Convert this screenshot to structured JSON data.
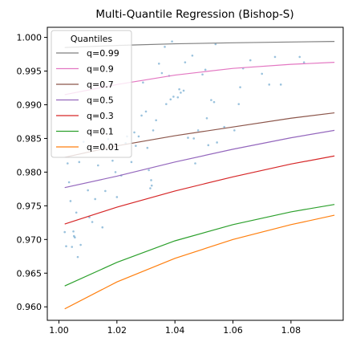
{
  "chart_data": {
    "type": "line",
    "title": "Multi-Quantile Regression (Bishop-S)",
    "xlabel": "",
    "ylabel": "",
    "xlim": [
      0.996,
      1.098
    ],
    "ylim": [
      0.958,
      1.0015
    ],
    "xticks": [
      "1.00",
      "1.02",
      "1.04",
      "1.06",
      "1.08"
    ],
    "yticks": [
      "0.960",
      "0.965",
      "0.970",
      "0.975",
      "0.980",
      "0.985",
      "0.990",
      "0.995",
      "1.000"
    ],
    "grid": false,
    "legend": {
      "title": "Quantiles",
      "placement": "top-left"
    },
    "series": [
      {
        "name": "q=0.99",
        "color": "#7f7f7f",
        "x": [
          1.002,
          1.02,
          1.04,
          1.06,
          1.08,
          1.095
        ],
        "y": [
          0.9985,
          0.9988,
          0.99905,
          0.9992,
          0.99932,
          0.9994
        ]
      },
      {
        "name": "q=0.9",
        "color": "#e377c2",
        "x": [
          1.002,
          1.02,
          1.04,
          1.06,
          1.08,
          1.095
        ],
        "y": [
          0.9915,
          0.993,
          0.9944,
          0.9954,
          0.996,
          0.9963
        ]
      },
      {
        "name": "q=0.7",
        "color": "#8c564b",
        "x": [
          1.002,
          1.02,
          1.04,
          1.06,
          1.08,
          1.095
        ],
        "y": [
          0.9822,
          0.9839,
          0.9854,
          0.9867,
          0.988,
          0.9888
        ]
      },
      {
        "name": "q=0.5",
        "color": "#9467bd",
        "x": [
          1.002,
          1.02,
          1.04,
          1.06,
          1.08,
          1.095
        ],
        "y": [
          0.9777,
          0.9794,
          0.9815,
          0.9834,
          0.9851,
          0.9862
        ]
      },
      {
        "name": "q=0.3",
        "color": "#d62728",
        "x": [
          1.002,
          1.02,
          1.04,
          1.06,
          1.08,
          1.095
        ],
        "y": [
          0.9723,
          0.9748,
          0.9772,
          0.9793,
          0.9812,
          0.9824
        ]
      },
      {
        "name": "q=0.1",
        "color": "#2ca02c",
        "x": [
          1.002,
          1.02,
          1.04,
          1.06,
          1.08,
          1.095
        ],
        "y": [
          0.9631,
          0.9666,
          0.9698,
          0.9722,
          0.9741,
          0.9752
        ]
      },
      {
        "name": "q=0.01",
        "color": "#ff7f0e",
        "x": [
          1.002,
          1.02,
          1.04,
          1.06,
          1.08,
          1.095
        ],
        "y": [
          0.9597,
          0.9637,
          0.9672,
          0.97,
          0.9722,
          0.9736
        ]
      }
    ],
    "scatter": {
      "color": "#1f77b4",
      "points": [
        [
          1.002,
          0.9711
        ],
        [
          1.0025,
          0.969
        ],
        [
          1.003,
          0.9813
        ],
        [
          1.0035,
          0.9785
        ],
        [
          1.004,
          0.9757
        ],
        [
          1.0045,
          0.9689
        ],
        [
          1.005,
          0.9712
        ],
        [
          1.0052,
          0.9705
        ],
        [
          1.0055,
          0.9703
        ],
        [
          1.006,
          0.974
        ],
        [
          1.0065,
          0.9674
        ],
        [
          1.007,
          0.9815
        ],
        [
          1.0075,
          0.9692
        ],
        [
          1.0085,
          0.9845
        ],
        [
          1.01,
          0.9773
        ],
        [
          1.0105,
          0.9733
        ],
        [
          1.0115,
          0.9726
        ],
        [
          1.0125,
          0.976
        ],
        [
          1.0135,
          0.981
        ],
        [
          1.015,
          0.9718
        ],
        [
          1.016,
          0.9772
        ],
        [
          1.017,
          0.9849
        ],
        [
          1.0185,
          0.9817
        ],
        [
          1.0195,
          0.98
        ],
        [
          1.02,
          0.9763
        ],
        [
          1.0215,
          0.9795
        ],
        [
          1.023,
          0.9843
        ],
        [
          1.0235,
          0.9853
        ],
        [
          1.025,
          0.9815
        ],
        [
          1.026,
          0.9859
        ],
        [
          1.0265,
          0.9839
        ],
        [
          1.0275,
          0.9853
        ],
        [
          1.0285,
          0.9884
        ],
        [
          1.029,
          0.9933
        ],
        [
          1.03,
          0.989
        ],
        [
          1.0305,
          0.9836
        ],
        [
          1.031,
          0.9803
        ],
        [
          1.0315,
          0.9776
        ],
        [
          1.0318,
          0.9788
        ],
        [
          1.032,
          0.978
        ],
        [
          1.0325,
          0.9862
        ],
        [
          1.0335,
          0.9877
        ],
        [
          1.0345,
          0.9961
        ],
        [
          1.0355,
          0.9947
        ],
        [
          1.0365,
          0.9986
        ],
        [
          1.037,
          0.9901
        ],
        [
          1.038,
          0.9943
        ],
        [
          1.0385,
          0.9908
        ],
        [
          1.039,
          0.9994
        ],
        [
          1.0395,
          0.9912
        ],
        [
          1.041,
          0.9911
        ],
        [
          1.0415,
          0.9923
        ],
        [
          1.042,
          0.9918
        ],
        [
          1.043,
          0.9921
        ],
        [
          1.0435,
          0.9963
        ],
        [
          1.0445,
          0.9851
        ],
        [
          1.046,
          0.9973
        ],
        [
          1.0465,
          0.985
        ],
        [
          1.047,
          0.9813
        ],
        [
          1.048,
          0.9862
        ],
        [
          1.0495,
          0.9945
        ],
        [
          1.0505,
          0.9952
        ],
        [
          1.051,
          0.988
        ],
        [
          1.0515,
          0.984
        ],
        [
          1.0525,
          0.9907
        ],
        [
          1.0535,
          0.9904
        ],
        [
          1.054,
          0.999
        ],
        [
          1.0545,
          0.9844
        ],
        [
          1.057,
          0.9867
        ],
        [
          1.0605,
          0.9862
        ],
        [
          1.062,
          0.9901
        ],
        [
          1.0625,
          0.9926
        ],
        [
          1.0635,
          0.9954
        ],
        [
          1.066,
          0.9966
        ],
        [
          1.07,
          0.9946
        ],
        [
          1.0725,
          0.993
        ],
        [
          1.0745,
          0.9971
        ],
        [
          1.0765,
          0.993
        ],
        [
          1.083,
          0.9971
        ],
        [
          1.0845,
          0.9963
        ]
      ]
    }
  }
}
